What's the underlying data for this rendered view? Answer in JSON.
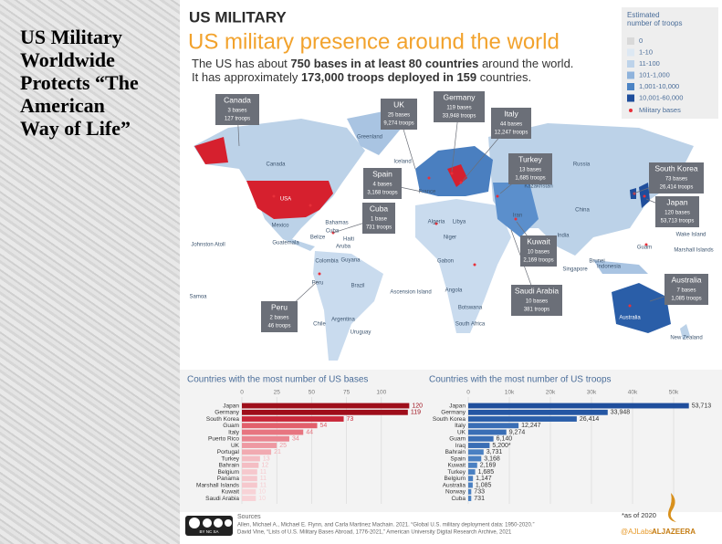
{
  "slide": {
    "heading_lines": [
      "US Military",
      "Worldwide",
      "Protects “The",
      "American",
      "Way of Life”"
    ]
  },
  "infographic": {
    "kicker": "US MILITARY",
    "title": "US military presence around the world",
    "subtitle_line1": [
      "The US has about ",
      "750 bases in at least 80 countries",
      " around the world."
    ],
    "subtitle_line2": [
      "It has approximately ",
      "173,000 troops deployed in 159",
      " countries."
    ],
    "legend": {
      "title_lines": [
        "Estimated",
        "number of troops"
      ],
      "items": [
        {
          "label": "0",
          "color": "#d9d9d9"
        },
        {
          "label": "1-10",
          "color": "#dde8f3"
        },
        {
          "label": "11-100",
          "color": "#bdd3ea"
        },
        {
          "label": "101-1,000",
          "color": "#8fb3dc"
        },
        {
          "label": "1,001-10,000",
          "color": "#4d84c4"
        },
        {
          "label": "10,001-60,000",
          "color": "#1f4e9c"
        }
      ],
      "bases_label": "Military bases",
      "bases_color": "#e8303a"
    },
    "callouts": [
      {
        "name": "Canada",
        "bases": "3 bases",
        "troops": "127 troops"
      },
      {
        "name": "UK",
        "bases": "25 bases",
        "troops": "9,274 troops"
      },
      {
        "name": "Germany",
        "bases": "119 bases",
        "troops": "33,948 troops"
      },
      {
        "name": "Italy",
        "bases": "44 bases",
        "troops": "12,247 troops"
      },
      {
        "name": "Spain",
        "bases": "4 bases",
        "troops": "3,168 troops"
      },
      {
        "name": "Cuba",
        "bases": "1 base",
        "troops": "731 troops"
      },
      {
        "name": "Turkey",
        "bases": "13 bases",
        "troops": "1,685 troops"
      },
      {
        "name": "South Korea",
        "bases": "73 bases",
        "troops": "26,414 troops"
      },
      {
        "name": "Japan",
        "bases": "120 bases",
        "troops": "53,713 troops"
      },
      {
        "name": "Kuwait",
        "bases": "10 bases",
        "troops": "2,169 troops"
      },
      {
        "name": "Saudi Arabia",
        "bases": "10 bases",
        "troops": "381 troops"
      },
      {
        "name": "Australia",
        "bases": "7 bases",
        "troops": "1,085 troops"
      },
      {
        "name": "Peru",
        "bases": "2 bases",
        "troops": "46 troops"
      }
    ],
    "places": [
      "Greenland",
      "Iceland",
      "Canada",
      "USA",
      "Mexico",
      "Bahamas",
      "Cuba",
      "Haiti",
      "Belize",
      "Guatemala",
      "Aruba",
      "Johnston Atoll",
      "Colombia",
      "Guyana",
      "Peru",
      "Brazil",
      "Chile",
      "Argentina",
      "Uruguay",
      "Samoa",
      "Ascension Island",
      "Algeria",
      "Libya",
      "Niger",
      "Gabon",
      "Angola",
      "Botswana",
      "South Africa",
      "Russia",
      "Kazakhstan",
      "China",
      "India",
      "Iran",
      "Singapore",
      "Brunei",
      "Indonesia",
      "Guam",
      "Wake Island",
      "Marshall Islands",
      "Australia",
      "New Zealand",
      "France"
    ],
    "footnote": "*as of 2020",
    "sources_title": "Sources",
    "sources": [
      "Allen, Michael A., Michael E. Flynn, and Carla Martinez Machain. 2021. “Global U.S. military deployment data: 1950-2020.”",
      "David Vine, “Lists of U.S. Military Bases Abroad, 1776-2021,” American University Digital Research Archive, 2021"
    ],
    "license": "BY NC SA",
    "credit": "@AJLabs",
    "brand": "ALJAZEERA"
  },
  "chart_data": [
    {
      "type": "hbar",
      "title": "Countries with the most number of US bases",
      "categories": [
        "Japan",
        "Germany",
        "South Korea",
        "Guam",
        "Italy",
        "Puerto Rico",
        "UK",
        "Portugal",
        "Turkey",
        "Bahrain",
        "Belgium",
        "Panama",
        "Marshall Islands",
        "Kuwait",
        "Saudi Arabia"
      ],
      "values": [
        120,
        119,
        73,
        54,
        44,
        34,
        25,
        21,
        13,
        12,
        11,
        11,
        11,
        10,
        10
      ],
      "colors": [
        "#9e0e1a",
        "#9e0e1a",
        "#c9283a",
        "#e2606c",
        "#e77580",
        "#ea8590",
        "#ee99a2",
        "#f1aab1",
        "#f4bdc3",
        "#f4bdc3",
        "#f6c8cd",
        "#f6c8cd",
        "#f6c8cd",
        "#f8d3d7",
        "#f8d3d7"
      ],
      "xlim": [
        0,
        125
      ],
      "xticks": [
        0,
        25,
        50,
        75,
        100
      ]
    },
    {
      "type": "hbar",
      "title": "Countries with the most number of US troops",
      "categories": [
        "Japan",
        "Germany",
        "South Korea",
        "Italy",
        "UK",
        "Guam",
        "Iraq",
        "Bahrain",
        "Spain",
        "Kuwait",
        "Turkey",
        "Belgium",
        "Australia",
        "Norway",
        "Cuba"
      ],
      "values": [
        53713,
        33948,
        26414,
        12247,
        9274,
        6140,
        5200,
        3731,
        3168,
        2169,
        1685,
        1147,
        1085,
        733,
        731
      ],
      "value_labels": [
        "53,713",
        "33,948",
        "26,414",
        "12,247",
        "9,274",
        "6,140",
        "5,200*",
        "3,731",
        "3,168",
        "2,169",
        "1,685",
        "1,147",
        "1,085",
        "733",
        "731"
      ],
      "colors": [
        "#1f4e9c",
        "#2456a3",
        "#2b5faa",
        "#3a6eb5",
        "#3a6eb5",
        "#3a6eb5",
        "#3a6eb5",
        "#4a80c2",
        "#4a80c2",
        "#4a80c2",
        "#4a80c2",
        "#4a80c2",
        "#4a80c2",
        "#4a80c2",
        "#4a80c2"
      ],
      "xlim": [
        0,
        55000
      ],
      "xticks": [
        0,
        {
          "value": 10000,
          "label": "10k"
        },
        {
          "value": 20000,
          "label": "20k"
        },
        {
          "value": 30000,
          "label": "30k"
        },
        {
          "value": 40000,
          "label": "40k"
        },
        {
          "value": 50000,
          "label": "50k"
        }
      ]
    }
  ]
}
